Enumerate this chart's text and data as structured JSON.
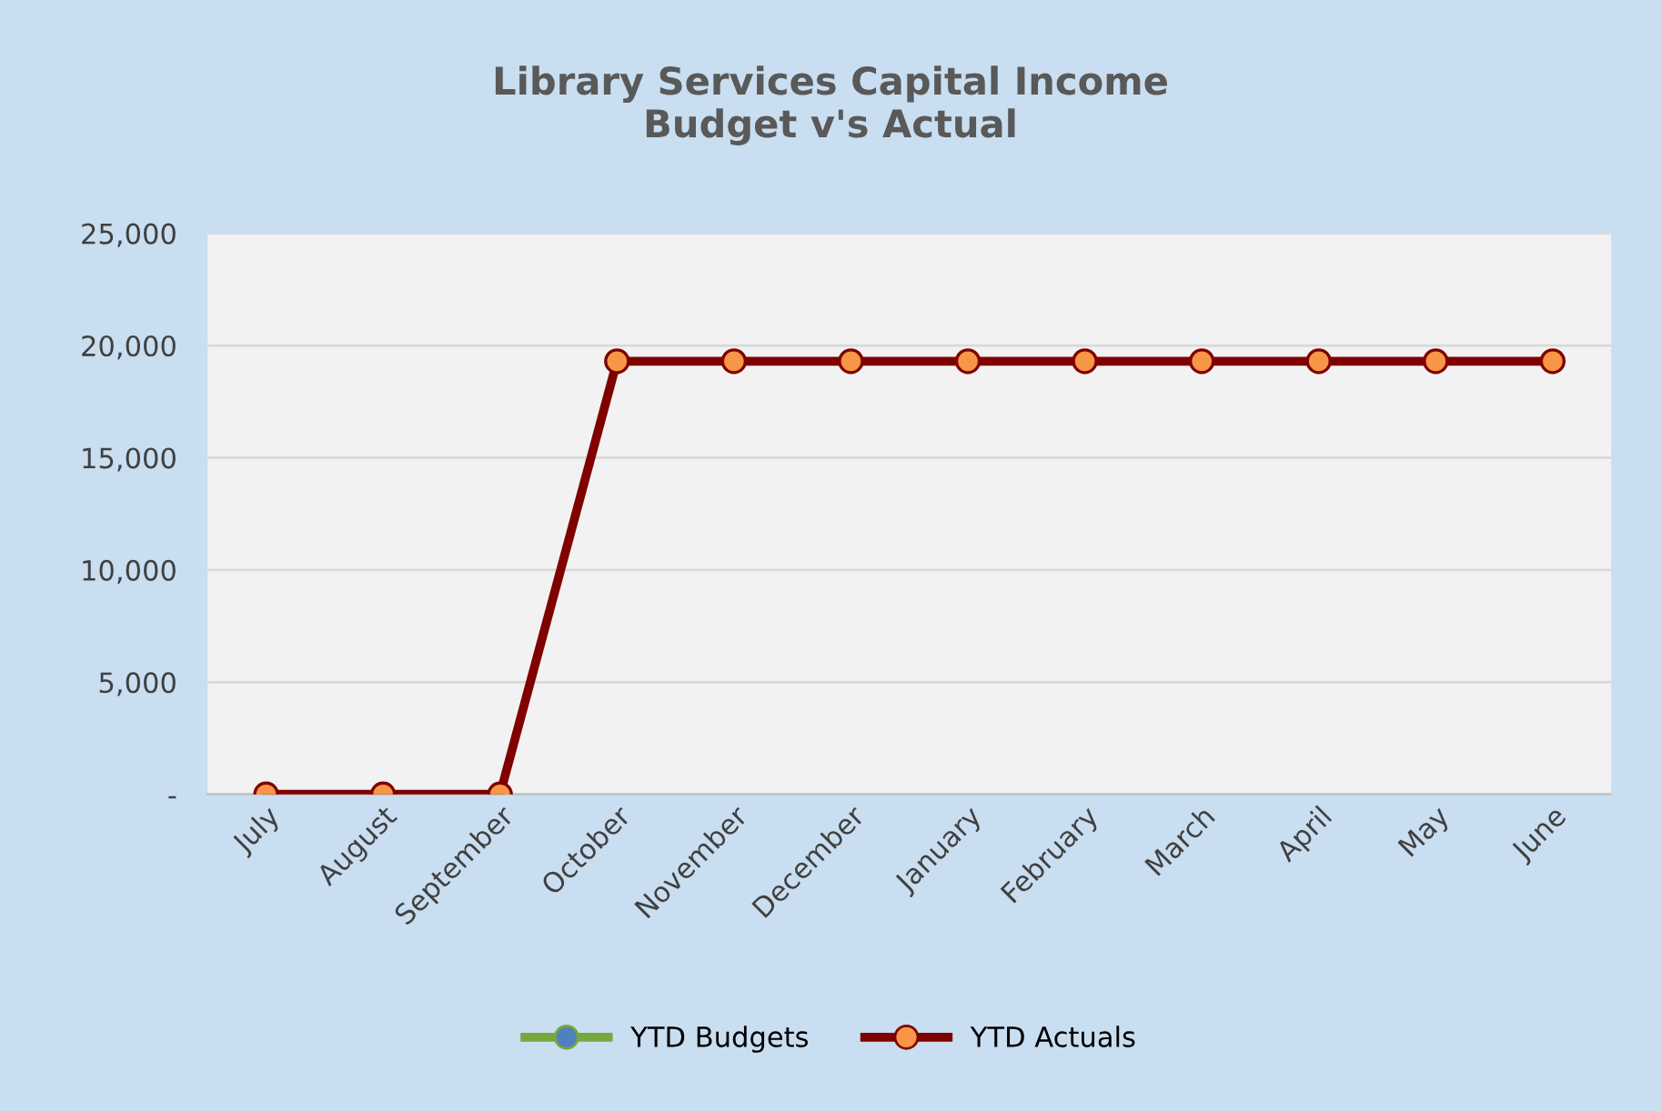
{
  "chart_data": {
    "type": "line",
    "title": "Library Services Capital Income\nBudget v's Actual",
    "categories": [
      "July",
      "August",
      "September",
      "October",
      "November",
      "December",
      "January",
      "February",
      "March",
      "April",
      "May",
      "June"
    ],
    "series": [
      {
        "name": "YTD Budgets",
        "color": "#77a83e",
        "values": [
          null,
          null,
          null,
          null,
          null,
          null,
          null,
          null,
          null,
          null,
          null,
          null
        ]
      },
      {
        "name": "YTD Actuals",
        "color": "#800000",
        "values": [
          0,
          0,
          0,
          19300,
          19300,
          19300,
          19300,
          19300,
          19300,
          19300,
          19300,
          19300
        ]
      }
    ],
    "ylim": [
      0,
      25000
    ],
    "yticks": [
      {
        "value": 0,
        "label": "-"
      },
      {
        "value": 5000,
        "label": "5,000"
      },
      {
        "value": 10000,
        "label": "10,000"
      },
      {
        "value": 15000,
        "label": "15,000"
      },
      {
        "value": 20000,
        "label": "20,000"
      },
      {
        "value": 25000,
        "label": "25,000"
      }
    ],
    "grid": "y",
    "legend": "bottom",
    "marker": "circle",
    "line_style": "solid"
  }
}
